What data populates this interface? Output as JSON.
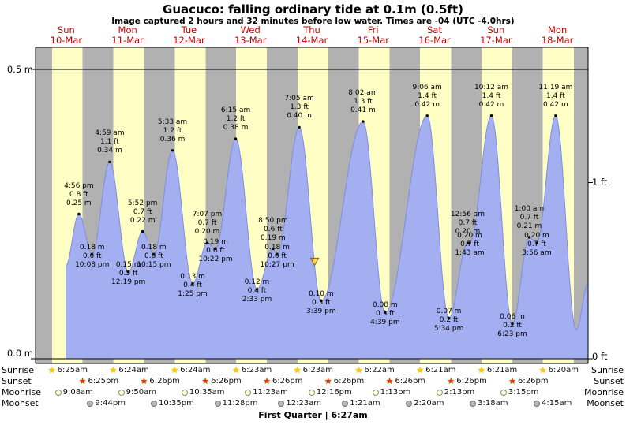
{
  "page": {
    "title": "Guacuco: falling  ordinary tide at 0.1m (0.5ft)",
    "subtitle": "Image captured 2 hours and 32 minutes before low water. Times are -04 (UTC -4.0hrs)"
  },
  "axis": {
    "left_top": "0.5 m",
    "left_bottom": "0.0 m",
    "right_top": "1 ft",
    "right_bottom": "0 ft"
  },
  "chart_data": {
    "type": "area",
    "title": "Guacuco: falling ordinary tide at 0.1m (0.5ft)",
    "ylabel_left": "meters",
    "ylabel_right": "feet",
    "ylim_m": [
      0.0,
      0.5
    ],
    "num_days": 9,
    "days": [
      {
        "name": "Sun",
        "date": "10-Mar"
      },
      {
        "name": "Mon",
        "date": "11-Mar"
      },
      {
        "name": "Tue",
        "date": "12-Mar"
      },
      {
        "name": "Wed",
        "date": "13-Mar"
      },
      {
        "name": "Thu",
        "date": "14-Mar"
      },
      {
        "name": "Fri",
        "date": "15-Mar"
      },
      {
        "name": "Sat",
        "date": "16-Mar"
      },
      {
        "name": "Sun",
        "date": "17-Mar"
      },
      {
        "name": "Mon",
        "date": "18-Mar"
      }
    ],
    "events": [
      {
        "day": 0,
        "time": "4:56 pm",
        "height_m": 0.25,
        "height_ft": 0.8,
        "type": "high"
      },
      {
        "day": 0,
        "time": "10:08 pm",
        "height_m": 0.18,
        "height_ft": 0.6,
        "type": "low"
      },
      {
        "day": 1,
        "time": "4:59 am",
        "height_m": 0.34,
        "height_ft": 1.1,
        "type": "high"
      },
      {
        "day": 1,
        "time": "12:19 pm",
        "height_m": 0.15,
        "height_ft": 0.5,
        "type": "low"
      },
      {
        "day": 1,
        "time": "5:52 pm",
        "height_m": 0.22,
        "height_ft": 0.7,
        "type": "high"
      },
      {
        "day": 1,
        "time": "10:15 pm",
        "height_m": 0.18,
        "height_ft": 0.6,
        "type": "low"
      },
      {
        "day": 2,
        "time": "5:33 am",
        "height_m": 0.36,
        "height_ft": 1.2,
        "type": "high"
      },
      {
        "day": 2,
        "time": "1:25 pm",
        "height_m": 0.13,
        "height_ft": 0.4,
        "type": "low"
      },
      {
        "day": 2,
        "time": "7:07 pm",
        "height_m": 0.2,
        "height_ft": 0.7,
        "type": "high"
      },
      {
        "day": 2,
        "time": "10:22 pm",
        "height_m": 0.19,
        "height_ft": 0.6,
        "type": "low"
      },
      {
        "day": 3,
        "time": "6:15 am",
        "height_m": 0.38,
        "height_ft": 1.2,
        "type": "high"
      },
      {
        "day": 3,
        "time": "2:33 pm",
        "height_m": 0.12,
        "height_ft": 0.4,
        "type": "low"
      },
      {
        "day": 3,
        "time": "8:50 pm",
        "height_m": 0.19,
        "height_ft": 0.6,
        "type": "high"
      },
      {
        "day": 3,
        "time": "10:27 pm",
        "height_m": 0.18,
        "height_ft": 0.6,
        "type": "low"
      },
      {
        "day": 4,
        "time": "7:05 am",
        "height_m": 0.4,
        "height_ft": 1.3,
        "type": "high"
      },
      {
        "day": 4,
        "time": "3:39 pm",
        "height_m": 0.1,
        "height_ft": 0.3,
        "type": "low"
      },
      {
        "day": 5,
        "time": "8:02 am",
        "height_m": 0.41,
        "height_ft": 1.3,
        "type": "high"
      },
      {
        "day": 5,
        "time": "4:39 pm",
        "height_m": 0.08,
        "height_ft": 0.3,
        "type": "low"
      },
      {
        "day": 6,
        "time": "9:06 am",
        "height_m": 0.42,
        "height_ft": 1.4,
        "type": "high"
      },
      {
        "day": 6,
        "time": "5:34 pm",
        "height_m": 0.07,
        "height_ft": 0.2,
        "type": "low"
      },
      {
        "day": 7,
        "time": "12:56 am",
        "height_m": 0.2,
        "height_ft": 0.7,
        "type": "high"
      },
      {
        "day": 7,
        "time": "1:43 am",
        "height_m": 0.2,
        "height_ft": 0.7,
        "type": "low"
      },
      {
        "day": 7,
        "time": "10:12 am",
        "height_m": 0.42,
        "height_ft": 1.4,
        "type": "high"
      },
      {
        "day": 7,
        "time": "6:23 pm",
        "height_m": 0.06,
        "height_ft": 0.2,
        "type": "low"
      },
      {
        "day": 8,
        "time": "1:00 am",
        "height_m": 0.21,
        "height_ft": 0.7,
        "type": "high"
      },
      {
        "day": 8,
        "time": "3:56 am",
        "height_m": 0.2,
        "height_ft": 0.7,
        "type": "low"
      },
      {
        "day": 8,
        "time": "11:19 am",
        "height_m": 0.42,
        "height_ft": 1.4,
        "type": "high"
      }
    ],
    "current_marker": {
      "day": 4,
      "time": "1:07 pm"
    },
    "curve_start": {
      "day": 0,
      "time": "11:45 am",
      "height_m": 0.16
    },
    "curve_tail": [
      {
        "day": 8,
        "time": "7:20 pm",
        "height_m": 0.05
      },
      {
        "day": 9,
        "time": "12:00 am",
        "height_m": 0.13
      }
    ]
  },
  "astro": {
    "rows": [
      {
        "label": "Sunrise",
        "icon": "sunrise-star",
        "entries": [
          {
            "day": 0,
            "time": "6:25am"
          },
          {
            "day": 1,
            "time": "6:24am"
          },
          {
            "day": 2,
            "time": "6:24am"
          },
          {
            "day": 3,
            "time": "6:23am"
          },
          {
            "day": 4,
            "time": "6:23am"
          },
          {
            "day": 5,
            "time": "6:22am"
          },
          {
            "day": 6,
            "time": "6:21am"
          },
          {
            "day": 7,
            "time": "6:21am"
          },
          {
            "day": 8,
            "time": "6:20am"
          }
        ]
      },
      {
        "label": "Sunset",
        "icon": "sunset-star",
        "entries": [
          {
            "day": 0,
            "time": "6:25pm"
          },
          {
            "day": 1,
            "time": "6:26pm"
          },
          {
            "day": 2,
            "time": "6:26pm"
          },
          {
            "day": 3,
            "time": "6:26pm"
          },
          {
            "day": 4,
            "time": "6:26pm"
          },
          {
            "day": 5,
            "time": "6:26pm"
          },
          {
            "day": 6,
            "time": "6:26pm"
          },
          {
            "day": 7,
            "time": "6:26pm"
          }
        ]
      },
      {
        "label": "Moonrise",
        "icon": "moonrise-circle",
        "entries": [
          {
            "day": 0,
            "time": "9:08am"
          },
          {
            "day": 1,
            "time": "9:50am"
          },
          {
            "day": 2,
            "time": "10:35am"
          },
          {
            "day": 3,
            "time": "11:23am"
          },
          {
            "day": 4,
            "time": "12:16pm"
          },
          {
            "day": 5,
            "time": "1:13pm"
          },
          {
            "day": 6,
            "time": "2:13pm"
          },
          {
            "day": 7,
            "time": "3:15pm"
          }
        ]
      },
      {
        "label": "Moonset",
        "icon": "moonset-circle",
        "entries": [
          {
            "day": 0,
            "time": "9:44pm"
          },
          {
            "day": 1,
            "time": "10:35pm"
          },
          {
            "day": 2,
            "time": "11:28pm"
          },
          {
            "day": 4,
            "time": "12:23am"
          },
          {
            "day": 5,
            "time": "1:21am"
          },
          {
            "day": 6,
            "time": "2:20am"
          },
          {
            "day": 7,
            "time": "3:18am"
          },
          {
            "day": 8,
            "time": "4:15am"
          }
        ]
      }
    ],
    "footer": "First Quarter | 6:27am"
  },
  "colors": {
    "day_band": "#ffffc5",
    "night_band": "#b1b1b1",
    "tide_fill": "#a3aff0",
    "tide_stroke": "#7e8ee0",
    "day_label_red": "#cc0000",
    "marker_fill": "#ffd34d",
    "marker_stroke": "#806000"
  }
}
